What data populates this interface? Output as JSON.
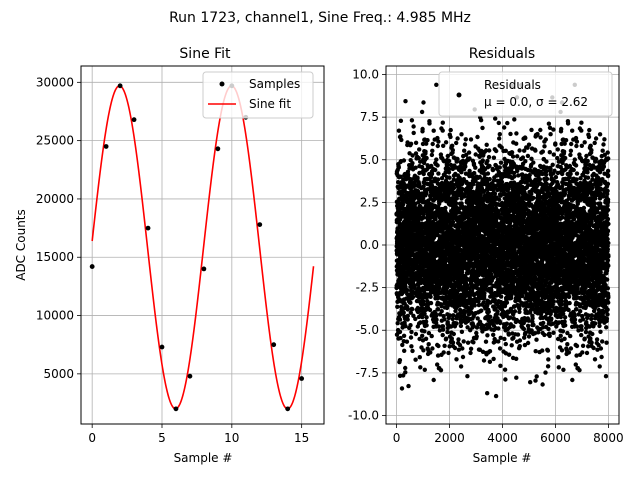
{
  "figure": {
    "suptitle": "Run 1723, channel1, Sine Freq.: 4.985 MHz"
  },
  "chart_data": [
    {
      "type": "line",
      "title": "Sine Fit",
      "xlabel": "Sample #",
      "ylabel": "ADC Counts",
      "xlim": [
        -0.8,
        16.6
      ],
      "ylim": [
        700,
        31400
      ],
      "xticks": [
        0,
        5,
        10,
        15
      ],
      "yticks": [
        5000,
        10000,
        15000,
        20000,
        25000,
        30000
      ],
      "grid": true,
      "legend": {
        "placement": "top-right",
        "entries": [
          "Samples",
          "Sine fit"
        ]
      },
      "series": [
        {
          "name": "Samples",
          "kind": "scatter",
          "color": "#000000",
          "x": [
            0,
            1,
            2,
            3,
            4,
            5,
            6,
            7,
            8,
            9,
            10,
            11,
            12,
            13,
            14,
            15
          ],
          "y": [
            14200,
            24500,
            29700,
            26800,
            17500,
            7300,
            2000,
            4800,
            14000,
            24300,
            29700,
            27000,
            17800,
            7500,
            2000,
            4600
          ]
        },
        {
          "name": "Sine fit",
          "kind": "line",
          "color": "#ff0000",
          "offset": 15850,
          "amplitude": 13850,
          "period_samples": 8.025,
          "phase_samples": -0.05,
          "x_range": [
            0,
            15.85
          ]
        }
      ]
    },
    {
      "type": "scatter",
      "title": "Residuals",
      "xlabel": "Sample #",
      "ylabel": "",
      "xlim": [
        -400,
        8400
      ],
      "ylim": [
        -10.5,
        10.5
      ],
      "xticks": [
        0,
        2000,
        4000,
        6000,
        8000
      ],
      "yticks": [
        -10.0,
        -7.5,
        -5.0,
        -2.5,
        0.0,
        2.5,
        5.0,
        7.5,
        10.0
      ],
      "grid": true,
      "legend": {
        "placement": "top-right",
        "entries": [
          "Residuals",
          "μ = 0.0, σ = 2.62"
        ]
      },
      "series": [
        {
          "name": "Residuals",
          "color": "#000000",
          "n_points": 8000,
          "mean": 0.0,
          "std": 2.62,
          "x_range": [
            0,
            7999
          ]
        }
      ]
    }
  ]
}
